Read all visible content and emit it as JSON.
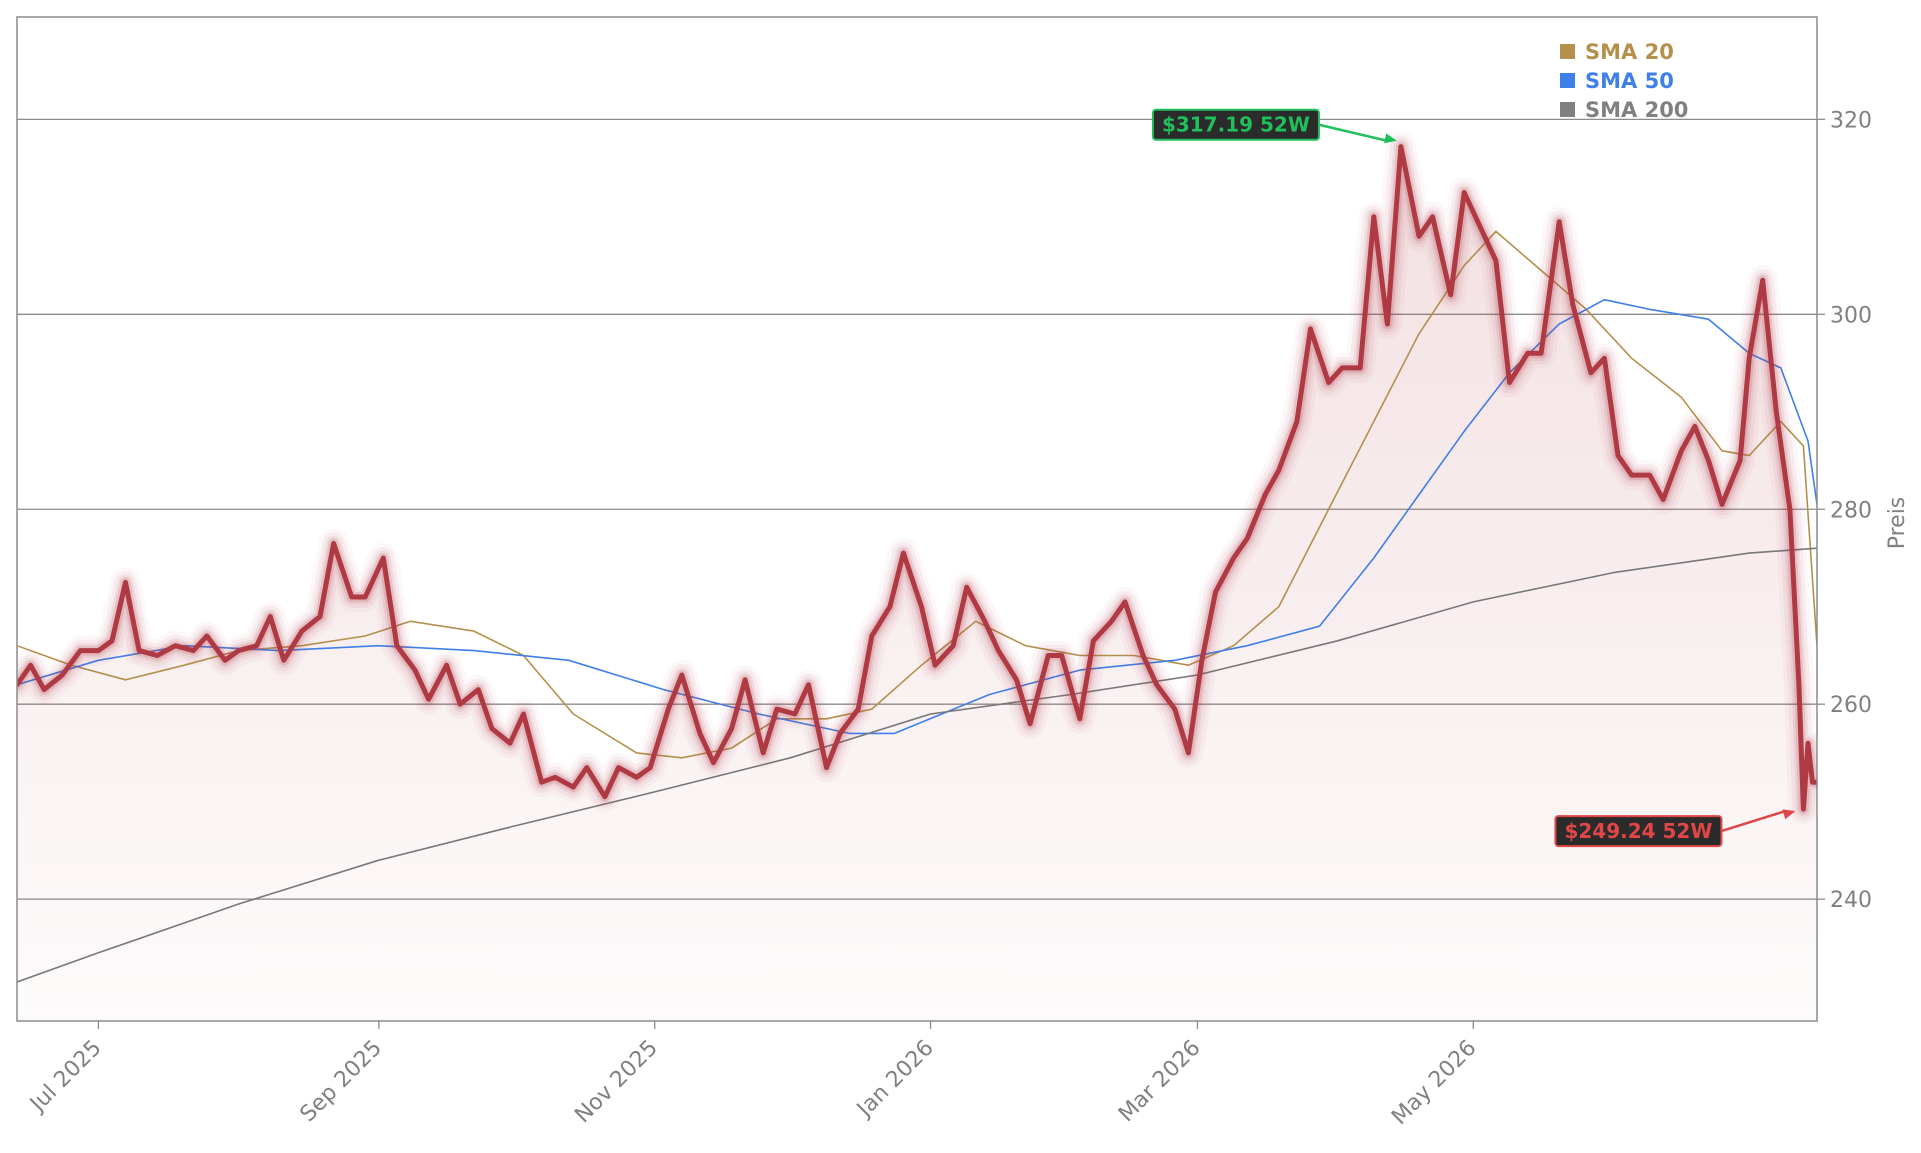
{
  "chart_data": {
    "type": "line",
    "title": "",
    "xlabel": "",
    "ylabel": "Preis",
    "y_axis_side": "right",
    "ylim": [
      227.5,
      330.5
    ],
    "x_range": [
      "2025-06-13",
      "2026-07-16"
    ],
    "yticks": [
      240,
      260,
      280,
      300,
      320
    ],
    "xticks": [
      {
        "date": "2025-07-01",
        "label": "Jul 2025"
      },
      {
        "date": "2025-09-01",
        "label": "Sep 2025"
      },
      {
        "date": "2025-11-01",
        "label": "Nov 2025"
      },
      {
        "date": "2026-01-01",
        "label": "Jan 2026"
      },
      {
        "date": "2026-03-01",
        "label": "Mar 2026"
      },
      {
        "date": "2026-05-01",
        "label": "May 2026"
      }
    ],
    "grid": {
      "horizontal": true,
      "vertical": false
    },
    "legend": "top-right",
    "price_color": "#b03a44",
    "series": [
      {
        "name": "",
        "role": "price",
        "color": "#b03a44",
        "points": [
          [
            "2025-06-13",
            262
          ],
          [
            "2025-06-16",
            264
          ],
          [
            "2025-06-19",
            261.5
          ],
          [
            "2025-06-23",
            263
          ],
          [
            "2025-06-27",
            265.5
          ],
          [
            "2025-07-01",
            265.5
          ],
          [
            "2025-07-04",
            266.5
          ],
          [
            "2025-07-07",
            272.5
          ],
          [
            "2025-07-10",
            265.5
          ],
          [
            "2025-07-14",
            265
          ],
          [
            "2025-07-18",
            266
          ],
          [
            "2025-07-22",
            265.5
          ],
          [
            "2025-07-25",
            267
          ],
          [
            "2025-07-29",
            264.5
          ],
          [
            "2025-08-01",
            265.5
          ],
          [
            "2025-08-05",
            266
          ],
          [
            "2025-08-08",
            269
          ],
          [
            "2025-08-11",
            264.5
          ],
          [
            "2025-08-15",
            267.5
          ],
          [
            "2025-08-19",
            269
          ],
          [
            "2025-08-22",
            276.5
          ],
          [
            "2025-08-26",
            271
          ],
          [
            "2025-08-29",
            271
          ],
          [
            "2025-09-02",
            275
          ],
          [
            "2025-09-05",
            266
          ],
          [
            "2025-09-09",
            263.5
          ],
          [
            "2025-09-12",
            260.5
          ],
          [
            "2025-09-16",
            264
          ],
          [
            "2025-09-19",
            260
          ],
          [
            "2025-09-23",
            261.5
          ],
          [
            "2025-09-26",
            257.5
          ],
          [
            "2025-09-30",
            256
          ],
          [
            "2025-10-03",
            259
          ],
          [
            "2025-10-07",
            252
          ],
          [
            "2025-10-10",
            252.5
          ],
          [
            "2025-10-14",
            251.5
          ],
          [
            "2025-10-17",
            253.5
          ],
          [
            "2025-10-21",
            250.5
          ],
          [
            "2025-10-24",
            253.5
          ],
          [
            "2025-10-28",
            252.5
          ],
          [
            "2025-10-31",
            253.5
          ],
          [
            "2025-11-04",
            259.5
          ],
          [
            "2025-11-07",
            263
          ],
          [
            "2025-11-11",
            257
          ],
          [
            "2025-11-14",
            254
          ],
          [
            "2025-11-18",
            257.5
          ],
          [
            "2025-11-21",
            262.5
          ],
          [
            "2025-11-25",
            255
          ],
          [
            "2025-11-28",
            259.5
          ],
          [
            "2025-12-02",
            259
          ],
          [
            "2025-12-05",
            262
          ],
          [
            "2025-12-09",
            253.5
          ],
          [
            "2025-12-12",
            257
          ],
          [
            "2025-12-16",
            259.5
          ],
          [
            "2025-12-19",
            267
          ],
          [
            "2025-12-23",
            270
          ],
          [
            "2025-12-26",
            275.5
          ],
          [
            "2025-12-30",
            270
          ],
          [
            "2026-01-02",
            264
          ],
          [
            "2026-01-06",
            266
          ],
          [
            "2026-01-09",
            272
          ],
          [
            "2026-01-13",
            268.5
          ],
          [
            "2026-01-16",
            265.5
          ],
          [
            "2026-01-20",
            262.5
          ],
          [
            "2026-01-23",
            258
          ],
          [
            "2026-01-27",
            265
          ],
          [
            "2026-01-30",
            265
          ],
          [
            "2026-02-03",
            258.5
          ],
          [
            "2026-02-06",
            266.5
          ],
          [
            "2026-02-10",
            268.5
          ],
          [
            "2026-02-13",
            270.5
          ],
          [
            "2026-02-17",
            265
          ],
          [
            "2026-02-20",
            262
          ],
          [
            "2026-02-24",
            259.5
          ],
          [
            "2026-02-27",
            255
          ],
          [
            "2026-03-02",
            264.5
          ],
          [
            "2026-03-05",
            271.5
          ],
          [
            "2026-03-09",
            275
          ],
          [
            "2026-03-12",
            277
          ],
          [
            "2026-03-16",
            281.5
          ],
          [
            "2026-03-19",
            284
          ],
          [
            "2026-03-23",
            289
          ],
          [
            "2026-03-26",
            298.5
          ],
          [
            "2026-03-30",
            293
          ],
          [
            "2026-04-02",
            294.5
          ],
          [
            "2026-04-06",
            294.5
          ],
          [
            "2026-04-09",
            310
          ],
          [
            "2026-04-12",
            299
          ],
          [
            "2026-04-15",
            317.2
          ],
          [
            "2026-04-19",
            308
          ],
          [
            "2026-04-22",
            310
          ],
          [
            "2026-04-26",
            302
          ],
          [
            "2026-04-29",
            312.5
          ],
          [
            "2026-05-03",
            308.5
          ],
          [
            "2026-05-06",
            305.5
          ],
          [
            "2026-05-09",
            293
          ],
          [
            "2026-05-13",
            296
          ],
          [
            "2026-05-16",
            296
          ],
          [
            "2026-05-20",
            309.5
          ],
          [
            "2026-05-23",
            301
          ],
          [
            "2026-05-27",
            294
          ],
          [
            "2026-05-30",
            295.5
          ],
          [
            "2026-06-02",
            285.5
          ],
          [
            "2026-06-05",
            283.5
          ],
          [
            "2026-06-09",
            283.5
          ],
          [
            "2026-06-12",
            281
          ],
          [
            "2026-06-16",
            286
          ],
          [
            "2026-06-19",
            288.5
          ],
          [
            "2026-06-22",
            285
          ],
          [
            "2026-06-25",
            280.5
          ],
          [
            "2026-06-29",
            285
          ],
          [
            "2026-07-01",
            295.5
          ],
          [
            "2026-07-04",
            303.5
          ],
          [
            "2026-07-07",
            290
          ],
          [
            "2026-07-10",
            280
          ],
          [
            "2026-07-12",
            262
          ],
          [
            "2026-07-13",
            249.24
          ],
          [
            "2026-07-14",
            256
          ],
          [
            "2026-07-15",
            252
          ],
          [
            "2026-07-16",
            252
          ]
        ]
      },
      {
        "name": "SMA 20",
        "color": "#b5904c",
        "points": [
          [
            "2025-06-13",
            266
          ],
          [
            "2025-06-25",
            264
          ],
          [
            "2025-07-07",
            262.5
          ],
          [
            "2025-07-20",
            264
          ],
          [
            "2025-08-01",
            265.5
          ],
          [
            "2025-08-15",
            266
          ],
          [
            "2025-08-29",
            267
          ],
          [
            "2025-09-08",
            268.5
          ],
          [
            "2025-09-22",
            267.5
          ],
          [
            "2025-10-03",
            265
          ],
          [
            "2025-10-14",
            259
          ],
          [
            "2025-10-28",
            255
          ],
          [
            "2025-11-07",
            254.5
          ],
          [
            "2025-11-18",
            255.5
          ],
          [
            "2025-11-28",
            258.5
          ],
          [
            "2025-12-09",
            258.5
          ],
          [
            "2025-12-19",
            259.5
          ],
          [
            "2025-12-30",
            264
          ],
          [
            "2026-01-11",
            268.5
          ],
          [
            "2026-01-22",
            266
          ],
          [
            "2026-02-03",
            265
          ],
          [
            "2026-02-15",
            265
          ],
          [
            "2026-02-27",
            264
          ],
          [
            "2026-03-09",
            266
          ],
          [
            "2026-03-19",
            270
          ],
          [
            "2026-03-30",
            280
          ],
          [
            "2026-04-09",
            289
          ],
          [
            "2026-04-19",
            298
          ],
          [
            "2026-04-29",
            305
          ],
          [
            "2026-05-06",
            308.5
          ],
          [
            "2026-05-16",
            304.5
          ],
          [
            "2026-05-26",
            300.5
          ],
          [
            "2026-06-05",
            295.5
          ],
          [
            "2026-06-16",
            291.5
          ],
          [
            "2026-06-25",
            286
          ],
          [
            "2026-07-01",
            285.5
          ],
          [
            "2026-07-08",
            289
          ],
          [
            "2026-07-13",
            286.5
          ],
          [
            "2026-07-16",
            266
          ]
        ]
      },
      {
        "name": "SMA 50",
        "color": "#3f7fe8",
        "points": [
          [
            "2025-06-13",
            262
          ],
          [
            "2025-07-01",
            264.5
          ],
          [
            "2025-07-20",
            266
          ],
          [
            "2025-08-10",
            265.5
          ],
          [
            "2025-09-01",
            266
          ],
          [
            "2025-09-22",
            265.5
          ],
          [
            "2025-10-13",
            264.5
          ],
          [
            "2025-11-03",
            261.5
          ],
          [
            "2025-11-24",
            259
          ],
          [
            "2025-12-14",
            257
          ],
          [
            "2025-12-24",
            257
          ],
          [
            "2026-01-14",
            261
          ],
          [
            "2026-02-03",
            263.5
          ],
          [
            "2026-02-24",
            264.5
          ],
          [
            "2026-03-12",
            266
          ],
          [
            "2026-03-28",
            268
          ],
          [
            "2026-04-09",
            275
          ],
          [
            "2026-04-19",
            281.5
          ],
          [
            "2026-04-29",
            288
          ],
          [
            "2026-05-09",
            294
          ],
          [
            "2026-05-20",
            299
          ],
          [
            "2026-05-30",
            301.5
          ],
          [
            "2026-06-09",
            300.5
          ],
          [
            "2026-06-22",
            299.5
          ],
          [
            "2026-07-01",
            296
          ],
          [
            "2026-07-08",
            294.5
          ],
          [
            "2026-07-14",
            287
          ],
          [
            "2026-07-16",
            280.5
          ]
        ]
      },
      {
        "name": "SMA 200",
        "color": "#787878",
        "points": [
          [
            "2025-06-13",
            231.5
          ],
          [
            "2025-07-01",
            234.5
          ],
          [
            "2025-08-01",
            239.5
          ],
          [
            "2025-09-01",
            244
          ],
          [
            "2025-10-01",
            247.5
          ],
          [
            "2025-11-01",
            251
          ],
          [
            "2025-12-01",
            254.5
          ],
          [
            "2026-01-01",
            259
          ],
          [
            "2026-02-01",
            261
          ],
          [
            "2026-03-01",
            263
          ],
          [
            "2026-04-01",
            266.5
          ],
          [
            "2026-05-01",
            270.5
          ],
          [
            "2026-06-01",
            273.5
          ],
          [
            "2026-07-01",
            275.5
          ],
          [
            "2026-07-16",
            276
          ]
        ]
      }
    ],
    "annotations": [
      {
        "label": "$317.19 52W",
        "date": "2026-04-15",
        "value": 317.19,
        "color": "#1fbf5a"
      },
      {
        "label": "$249.24 52W",
        "date": "2026-07-13",
        "value": 249.24,
        "color": "#e04646"
      }
    ],
    "legend_entries": [
      {
        "name": "SMA 20",
        "color": "#b5904c"
      },
      {
        "name": "SMA 50",
        "color": "#3f7fe8"
      },
      {
        "name": "SMA 200",
        "color": "#808080"
      }
    ]
  }
}
